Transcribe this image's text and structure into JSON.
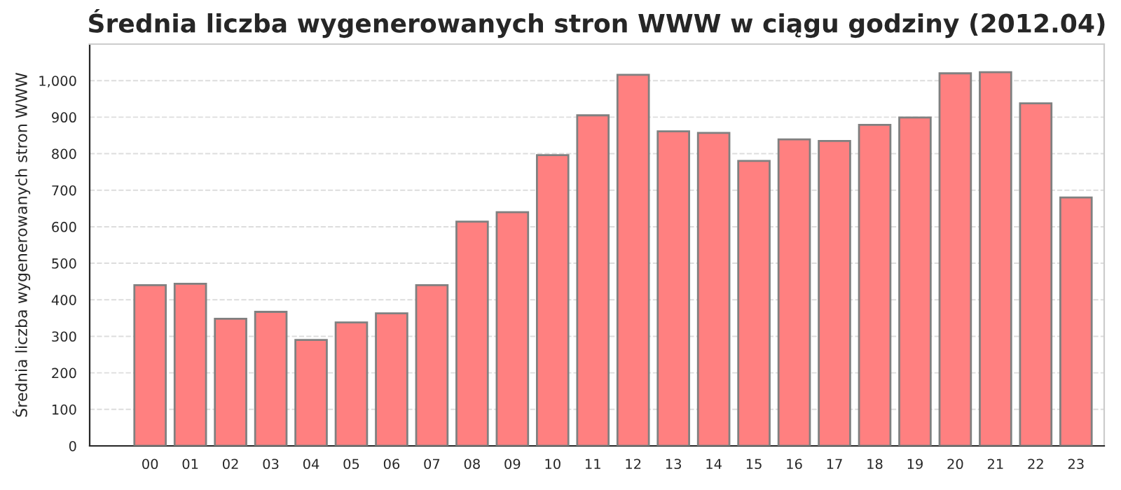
{
  "chart_data": {
    "type": "bar",
    "title": "Średnia liczba wygenerowanych stron WWW w ciągu godziny (2012.04)",
    "ylabel": "Średnia liczba wygenerowanych stron WWW",
    "categories": [
      "00",
      "01",
      "02",
      "03",
      "04",
      "05",
      "06",
      "07",
      "08",
      "09",
      "10",
      "11",
      "12",
      "13",
      "14",
      "15",
      "16",
      "17",
      "18",
      "19",
      "20",
      "21",
      "22",
      "23"
    ],
    "values": [
      440,
      444,
      348,
      367,
      290,
      338,
      363,
      440,
      614,
      640,
      796,
      905,
      1016,
      861,
      857,
      780,
      839,
      835,
      879,
      899,
      1020,
      1023,
      938,
      680
    ],
    "color": "#ff8080",
    "ylim": [
      0,
      1100
    ],
    "yticks": [
      0,
      100,
      200,
      300,
      400,
      500,
      600,
      700,
      800,
      900,
      {
        "value": 1000,
        "label": "1,000"
      }
    ],
    "grid": "y"
  }
}
